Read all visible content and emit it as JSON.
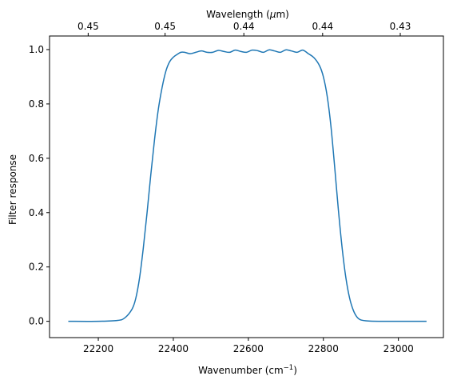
{
  "chart_data": {
    "type": "line",
    "title": "",
    "xlabel": "Wavenumber (cm",
    "xlabel_superscript": "−1",
    "xlabel_suffix": ")",
    "ylabel": "Filter response",
    "top_xlabel": "Wavelength (",
    "top_xlabel_mu": "μ",
    "top_xlabel_suffix": "m)",
    "xlim": [
      22070,
      23120
    ],
    "ylim": [
      -0.06,
      1.05
    ],
    "xticks": [
      22200,
      22400,
      22600,
      22800,
      23000
    ],
    "yticks": [
      0.0,
      0.2,
      0.4,
      0.6,
      0.8,
      1.0
    ],
    "yticklabels": [
      "0.0",
      "0.2",
      "0.4",
      "0.6",
      "0.8",
      "1.0"
    ],
    "top_ticks": [
      {
        "wavenumber": 22173,
        "label": "0.45"
      },
      {
        "wavenumber": 22378,
        "label": "0.45"
      },
      {
        "wavenumber": 22588,
        "label": "0.44"
      },
      {
        "wavenumber": 22798,
        "label": "0.44"
      },
      {
        "wavenumber": 23005,
        "label": "0.43"
      }
    ],
    "grid": false,
    "color": "#1f77b4",
    "series": [
      {
        "x": [
          22120,
          22200,
          22250,
          22270,
          22290,
          22300,
          22310,
          22320,
          22330,
          22340,
          22350,
          22360,
          22370,
          22380,
          22390,
          22400,
          22410,
          22420,
          22430,
          22445,
          22460,
          22475,
          22490,
          22505,
          22520,
          22535,
          22550,
          22565,
          22580,
          22595,
          22610,
          22625,
          22640,
          22655,
          22670,
          22685,
          22700,
          22715,
          22730,
          22745,
          22760,
          22775,
          22790,
          22800,
          22810,
          22820,
          22830,
          22840,
          22850,
          22860,
          22870,
          22880,
          22890,
          22900,
          22920,
          22950,
          23000,
          23075
        ],
        "y": [
          0.0,
          0.0,
          0.003,
          0.012,
          0.045,
          0.085,
          0.16,
          0.27,
          0.4,
          0.54,
          0.67,
          0.78,
          0.86,
          0.92,
          0.955,
          0.972,
          0.982,
          0.99,
          0.99,
          0.985,
          0.99,
          0.995,
          0.99,
          0.99,
          0.997,
          0.993,
          0.99,
          0.998,
          0.993,
          0.99,
          0.998,
          0.996,
          0.99,
          0.999,
          0.995,
          0.99,
          0.999,
          0.995,
          0.99,
          0.998,
          0.985,
          0.97,
          0.94,
          0.9,
          0.83,
          0.72,
          0.57,
          0.41,
          0.27,
          0.16,
          0.085,
          0.04,
          0.015,
          0.005,
          0.001,
          0.0,
          0.0,
          0.0
        ]
      }
    ]
  }
}
